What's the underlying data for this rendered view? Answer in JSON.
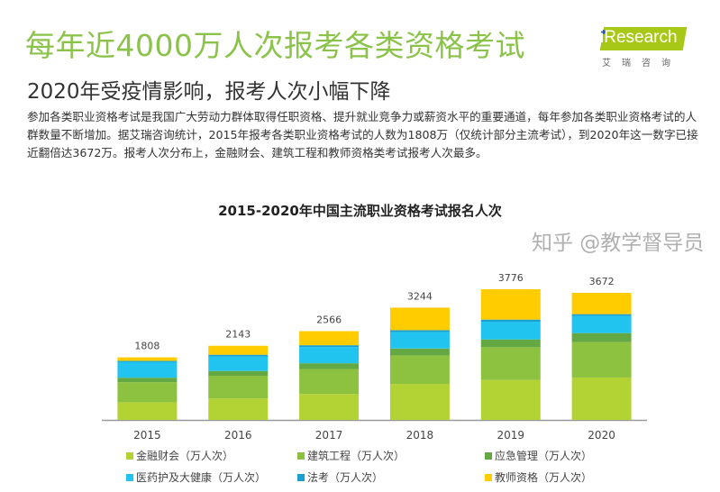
{
  "header": {
    "title": "每年近4000万人次报考各类资格考试",
    "subtitle": "2020年受疫情影响，报考人次小幅下降",
    "body": "参加各类职业资格考试是我国广大劳动力群体取得任职资格、提升就业竞争力或薪资水平的重要通道，每年参加各类职业资格考试的人群数量不断增加。据艾瑞咨询统计，2015年报考各类职业资格考试的人数为1808万（仅统计部分主流考试），到2020年这一数字已接近翻倍达3672万。报考人次分布上，金融财会、建筑工程和教师资格类考试报考人次最多。"
  },
  "logo": {
    "word": "iResearch",
    "cn": "艾瑞咨询"
  },
  "watermark": "知乎 @教学督导员",
  "chart_data": {
    "type": "bar",
    "stacked": true,
    "title": "2015-2020年中国主流职业资格考试报名人次",
    "categories": [
      "2015",
      "2016",
      "2017",
      "2018",
      "2019",
      "2020"
    ],
    "totals": [
      1808,
      2143,
      2566,
      3244,
      3776,
      3672
    ],
    "series": [
      {
        "name": "金融财会（万人次）",
        "color": "#b3d234",
        "values": [
          510,
          620,
          750,
          1040,
          1154,
          1225
        ]
      },
      {
        "name": "建筑工程（万人次）",
        "color": "#8cc23f",
        "values": [
          580,
          655,
          722,
          824,
          946,
          1024
        ]
      },
      {
        "name": "应急管理（万人次）",
        "color": "#64a844",
        "values": [
          130,
          140,
          165,
          200,
          226,
          260
        ]
      },
      {
        "name": "医药护及大健康（万人次）",
        "color": "#21c4ef",
        "values": [
          460,
          418,
          469,
          477,
          512,
          495
        ]
      },
      {
        "name": "法考（万人次）",
        "color": "#1a9fd0",
        "values": [
          25,
          50,
          52,
          52,
          61,
          52
        ]
      },
      {
        "name": "教师资格（万人次）",
        "color": "#ffcc00",
        "values": [
          103,
          260,
          408,
          651,
          877,
          616
        ]
      }
    ],
    "xlabel": "",
    "ylabel": "",
    "ylim": [
      0,
      4000
    ],
    "grid": false,
    "legend": "bottom"
  }
}
